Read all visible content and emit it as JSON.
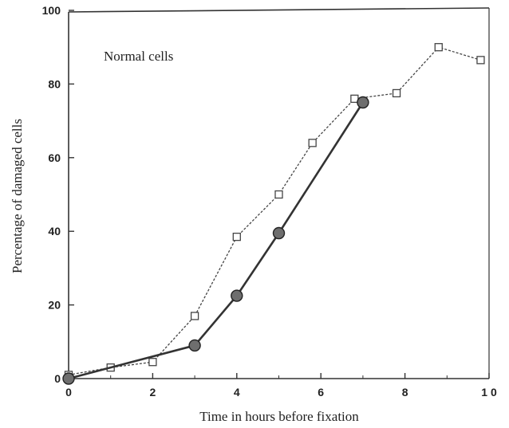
{
  "chart_data": {
    "type": "line",
    "title": "",
    "xlabel": "Time in hours before fixation",
    "ylabel": "Percentage of damaged cells",
    "xlim": [
      0,
      10
    ],
    "ylim": [
      0,
      100
    ],
    "x_ticks": [
      0,
      2,
      4,
      6,
      8,
      10
    ],
    "x_tick_labels": [
      "0",
      "2",
      "4",
      "6",
      "8",
      "1 0"
    ],
    "y_ticks": [
      0,
      20,
      40,
      60,
      80,
      100
    ],
    "y_tick_labels": [
      "0",
      "20",
      "40",
      "60",
      "80",
      "100"
    ],
    "grid": false,
    "annotation": "Normal cells",
    "series": [
      {
        "marker": "open-square",
        "line_style": "dotted",
        "color": "#444444",
        "x": [
          0,
          1,
          2,
          3,
          4,
          5,
          5.8,
          6.8,
          7.8,
          8.8,
          9.8
        ],
        "y": [
          1,
          3,
          4.5,
          17,
          38.5,
          50,
          64,
          76,
          77.5,
          90,
          86.5
        ]
      },
      {
        "marker": "filled-circle",
        "line_style": "solid",
        "color": "#333333",
        "x": [
          0,
          3,
          4,
          5,
          7
        ],
        "y": [
          0,
          9,
          22.5,
          39.5,
          75
        ]
      }
    ]
  }
}
